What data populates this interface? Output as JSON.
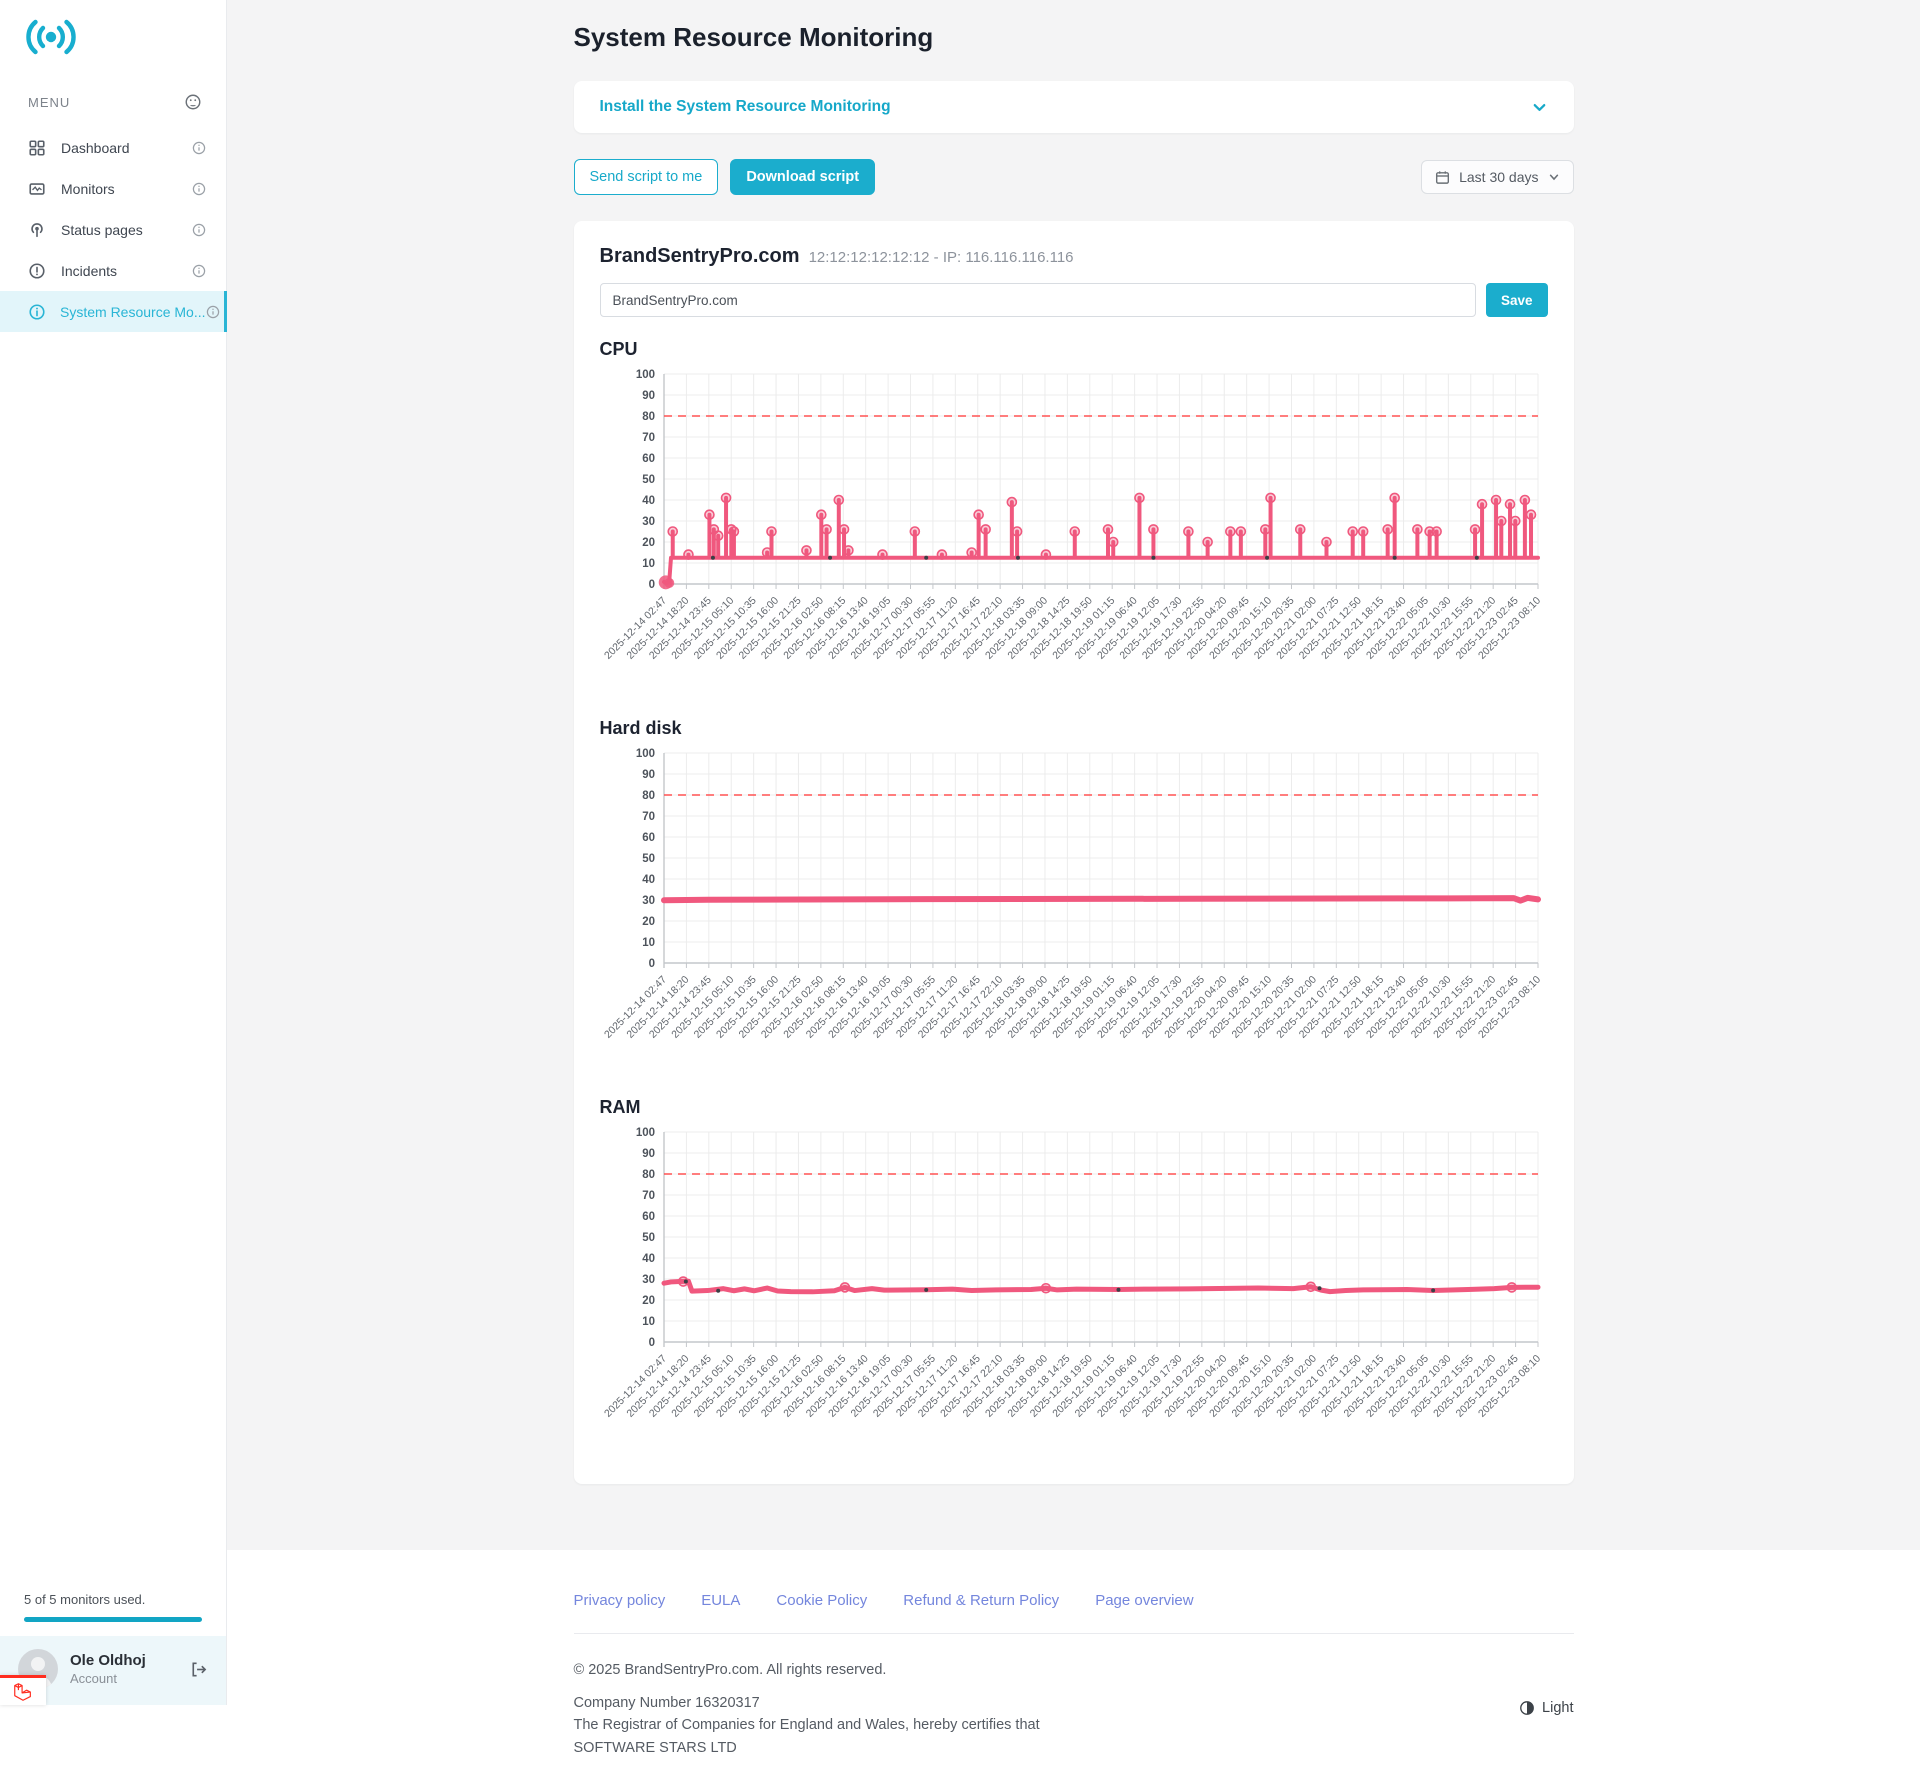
{
  "sidebar": {
    "menu_label": "MENU",
    "items": [
      {
        "label": "Dashboard"
      },
      {
        "label": "Monitors"
      },
      {
        "label": "Status pages"
      },
      {
        "label": "Incidents"
      },
      {
        "label": "System Resource Mo..."
      }
    ],
    "usage_text": "5 of 5 monitors used.",
    "user": {
      "name": "Ole Oldhoj",
      "role": "Account"
    }
  },
  "header": {
    "title": "System Resource Monitoring"
  },
  "install": {
    "label": "Install the System Resource Monitoring"
  },
  "actions": {
    "send_script": "Send script to me",
    "download_script": "Download script",
    "date_range": "Last 30 days"
  },
  "monitor": {
    "name": "BrandSentryPro.com",
    "meta": "12:12:12:12:12:12 - IP: 116.116.116.116",
    "input_value": "BrandSentryPro.com",
    "save_label": "Save"
  },
  "chart_data": {
    "type": "line",
    "ylim": [
      0,
      100
    ],
    "ytick_step": 10,
    "threshold": 80,
    "grid": true,
    "colors": {
      "line": "#f0587e",
      "marker_fill": "rgba(240,88,126,0.3)",
      "threshold": "#ff5252",
      "grid": "#ececec",
      "axis": "#c4c7cb",
      "tick_text": "#62676e",
      "ylabel_text": "#4d535b"
    },
    "x_labels": [
      "2025-12-14 02:47",
      "2025-12-14 18:20",
      "2025-12-14 23:45",
      "2025-12-15 05:10",
      "2025-12-15 10:35",
      "2025-12-15 16:00",
      "2025-12-15 21:25",
      "2025-12-16 02:50",
      "2025-12-16 08:15",
      "2025-12-16 13:40",
      "2025-12-16 19:05",
      "2025-12-17 00:30",
      "2025-12-17 05:55",
      "2025-12-17 11:20",
      "2025-12-17 16:45",
      "2025-12-17 22:10",
      "2025-12-18 03:35",
      "2025-12-18 09:00",
      "2025-12-18 14:25",
      "2025-12-18 19:50",
      "2025-12-19 01:15",
      "2025-12-19 06:40",
      "2025-12-19 12:05",
      "2025-12-19 17:30",
      "2025-12-19 22:55",
      "2025-12-20 04:20",
      "2025-12-20 09:45",
      "2025-12-20 15:10",
      "2025-12-20 20:35",
      "2025-12-21 02:00",
      "2025-12-21 07:25",
      "2025-12-21 12:50",
      "2025-12-21 18:15",
      "2025-12-21 23:40",
      "2025-12-22 05:05",
      "2025-12-22 10:30",
      "2025-12-22 15:55",
      "2025-12-22 21:20",
      "2025-12-23 02:45",
      "2025-12-23 08:10"
    ],
    "charts": [
      {
        "title": "CPU",
        "kind": "spiky",
        "baseline": 12.5,
        "start": [
          [
            0.0,
            1.0
          ],
          [
            0.003,
            0.4
          ],
          [
            0.006,
            1.2
          ],
          [
            0.008,
            12.5
          ]
        ],
        "spikes": [
          [
            0.01,
            25
          ],
          [
            0.028,
            14
          ],
          [
            0.052,
            33
          ],
          [
            0.057,
            26
          ],
          [
            0.062,
            23
          ],
          [
            0.071,
            41
          ],
          [
            0.077,
            26
          ],
          [
            0.08,
            25
          ],
          [
            0.118,
            15
          ],
          [
            0.123,
            25
          ],
          [
            0.163,
            16
          ],
          [
            0.18,
            33
          ],
          [
            0.186,
            26
          ],
          [
            0.2,
            40
          ],
          [
            0.206,
            26
          ],
          [
            0.211,
            16
          ],
          [
            0.25,
            14
          ],
          [
            0.287,
            25
          ],
          [
            0.318,
            14
          ],
          [
            0.352,
            15
          ],
          [
            0.36,
            33
          ],
          [
            0.368,
            26
          ],
          [
            0.398,
            39
          ],
          [
            0.404,
            25
          ],
          [
            0.437,
            14
          ],
          [
            0.47,
            25
          ],
          [
            0.508,
            26
          ],
          [
            0.514,
            20
          ],
          [
            0.544,
            41
          ],
          [
            0.56,
            26
          ],
          [
            0.6,
            25
          ],
          [
            0.622,
            20
          ],
          [
            0.648,
            25
          ],
          [
            0.66,
            25
          ],
          [
            0.688,
            26
          ],
          [
            0.694,
            41
          ],
          [
            0.728,
            26
          ],
          [
            0.758,
            20
          ],
          [
            0.788,
            25
          ],
          [
            0.8,
            25
          ],
          [
            0.828,
            26
          ],
          [
            0.836,
            41
          ],
          [
            0.862,
            26
          ],
          [
            0.876,
            25
          ],
          [
            0.884,
            25
          ],
          [
            0.928,
            26
          ],
          [
            0.936,
            38
          ],
          [
            0.952,
            40
          ],
          [
            0.958,
            30
          ],
          [
            0.968,
            38
          ],
          [
            0.974,
            30
          ],
          [
            0.985,
            40
          ],
          [
            0.992,
            33
          ]
        ],
        "baseline_dots": [
          0.056,
          0.19,
          0.3,
          0.405,
          0.56,
          0.69,
          0.836,
          0.93
        ]
      },
      {
        "title": "Hard disk",
        "kind": "smooth",
        "line_width": 6,
        "points": [
          [
            0,
            29.9
          ],
          [
            0.05,
            30.1
          ],
          [
            0.3,
            30.4
          ],
          [
            0.6,
            30.6
          ],
          [
            0.9,
            30.8
          ],
          [
            0.972,
            30.9
          ],
          [
            0.98,
            29.7
          ],
          [
            0.988,
            31.0
          ],
          [
            1.0,
            30.3
          ]
        ],
        "markers": [],
        "dots": []
      },
      {
        "title": "RAM",
        "kind": "smooth",
        "line_width": 5,
        "points": [
          [
            0.0,
            28.0
          ],
          [
            0.008,
            28.6
          ],
          [
            0.018,
            28.8
          ],
          [
            0.028,
            28.9
          ],
          [
            0.032,
            24.2
          ],
          [
            0.05,
            24.5
          ],
          [
            0.068,
            25.4
          ],
          [
            0.08,
            24.4
          ],
          [
            0.092,
            25.3
          ],
          [
            0.103,
            24.4
          ],
          [
            0.118,
            25.7
          ],
          [
            0.13,
            24.3
          ],
          [
            0.145,
            24.0
          ],
          [
            0.17,
            23.9
          ],
          [
            0.195,
            24.4
          ],
          [
            0.207,
            26.0
          ],
          [
            0.218,
            24.5
          ],
          [
            0.238,
            25.4
          ],
          [
            0.252,
            24.7
          ],
          [
            0.3,
            24.9
          ],
          [
            0.33,
            25.2
          ],
          [
            0.352,
            24.5
          ],
          [
            0.38,
            24.8
          ],
          [
            0.42,
            25.0
          ],
          [
            0.437,
            25.6
          ],
          [
            0.45,
            24.8
          ],
          [
            0.472,
            25.2
          ],
          [
            0.52,
            25.0
          ],
          [
            0.555,
            25.2
          ],
          [
            0.6,
            25.3
          ],
          [
            0.635,
            25.5
          ],
          [
            0.68,
            25.7
          ],
          [
            0.72,
            25.4
          ],
          [
            0.74,
            26.3
          ],
          [
            0.752,
            24.7
          ],
          [
            0.762,
            24.0
          ],
          [
            0.78,
            24.5
          ],
          [
            0.8,
            24.8
          ],
          [
            0.85,
            25.0
          ],
          [
            0.88,
            24.5
          ],
          [
            0.92,
            25.0
          ],
          [
            0.95,
            25.4
          ],
          [
            0.97,
            26.0
          ],
          [
            1.0,
            26.1
          ]
        ],
        "markers": [
          [
            0.022,
            28.8
          ],
          [
            0.207,
            26.0
          ],
          [
            0.437,
            25.6
          ],
          [
            0.74,
            26.3
          ],
          [
            0.97,
            26.0
          ]
        ],
        "dots": [
          [
            0.025,
            28.8
          ],
          [
            0.062,
            24.4
          ],
          [
            0.3,
            24.8
          ],
          [
            0.52,
            24.9
          ],
          [
            0.75,
            25.6
          ],
          [
            0.88,
            24.6
          ]
        ]
      }
    ]
  },
  "footer": {
    "links": [
      {
        "label": "Privacy policy"
      },
      {
        "label": "EULA"
      },
      {
        "label": "Cookie Policy"
      },
      {
        "label": "Refund & Return Policy"
      },
      {
        "label": "Page overview"
      }
    ],
    "copyright": "© 2025 BrandSentryPro.com. All rights reserved.",
    "company_lines": [
      "Company Number 16320317",
      "The Registrar of Companies for England and Wales, hereby certifies that",
      "SOFTWARE STARS LTD"
    ],
    "theme_label": "Light"
  }
}
